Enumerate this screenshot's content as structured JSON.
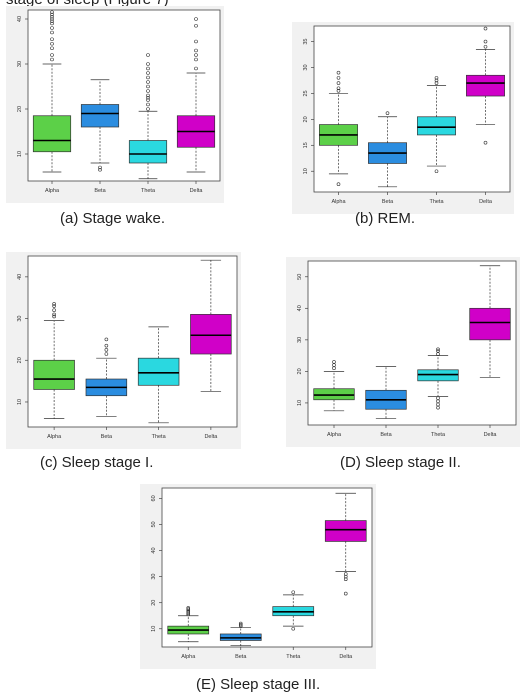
{
  "header_text": "stage of sleep (Figure 7)",
  "colors": {
    "Alpha": "#5cd048",
    "Beta": "#2b8de0",
    "Theta": "#2ad8e0",
    "Delta": "#d000c8"
  },
  "chart_data": [
    {
      "type": "boxplot",
      "caption": "(a) Stage wake.",
      "categories": [
        "Alpha",
        "Beta",
        "Theta",
        "Delta"
      ],
      "yticks": [
        10,
        20,
        30,
        40
      ],
      "ylim": [
        4,
        42
      ],
      "boxes": [
        {
          "name": "Alpha",
          "whisker_low": 6,
          "q1": 10.5,
          "median": 13,
          "q3": 18.5,
          "whisker_high": 30,
          "outliers": [
            31,
            32,
            33.5,
            34.5,
            35.5,
            37,
            38,
            39,
            39.5,
            40,
            40.5,
            41,
            41.5
          ]
        },
        {
          "name": "Beta",
          "whisker_low": 8,
          "q1": 16,
          "median": 19,
          "q3": 21,
          "whisker_high": 26.5,
          "outliers": [
            7,
            6.5
          ]
        },
        {
          "name": "Theta",
          "whisker_low": 4.5,
          "q1": 8,
          "median": 10,
          "q3": 13,
          "whisker_high": 19.5,
          "outliers": [
            20,
            21,
            22,
            22.5,
            23,
            24,
            25,
            26,
            27,
            28,
            29,
            30,
            32
          ]
        },
        {
          "name": "Delta",
          "whisker_low": 6,
          "q1": 11.5,
          "median": 15,
          "q3": 18.5,
          "whisker_high": 28,
          "outliers": [
            29,
            31,
            32,
            33,
            35,
            38.5,
            40
          ]
        }
      ]
    },
    {
      "type": "boxplot",
      "caption": "(b) REM.",
      "categories": [
        "Alpha",
        "Beta",
        "Theta",
        "Delta"
      ],
      "yticks": [
        10,
        15,
        20,
        25,
        30,
        35
      ],
      "ylim": [
        6,
        38
      ],
      "boxes": [
        {
          "name": "Alpha",
          "whisker_low": 9.5,
          "q1": 15,
          "median": 17,
          "q3": 19,
          "whisker_high": 25,
          "outliers": [
            7.5,
            25.5,
            26,
            27,
            28,
            29
          ]
        },
        {
          "name": "Beta",
          "whisker_low": 7,
          "q1": 11.5,
          "median": 13.5,
          "q3": 15.5,
          "whisker_high": 20.5,
          "outliers": [
            21.2
          ]
        },
        {
          "name": "Theta",
          "whisker_low": 11,
          "q1": 17,
          "median": 18.5,
          "q3": 20.5,
          "whisker_high": 26.5,
          "outliers": [
            10,
            27,
            27.5,
            28
          ]
        },
        {
          "name": "Delta",
          "whisker_low": 19,
          "q1": 24.5,
          "median": 27,
          "q3": 28.5,
          "whisker_high": 33.5,
          "outliers": [
            15.5,
            34,
            35,
            37.5
          ]
        }
      ]
    },
    {
      "type": "boxplot",
      "caption": "(c) Sleep stage I.",
      "categories": [
        "Alpha",
        "Beta",
        "Theta",
        "Delta"
      ],
      "yticks": [
        10,
        20,
        30,
        40
      ],
      "ylim": [
        4,
        45
      ],
      "boxes": [
        {
          "name": "Alpha",
          "whisker_low": 6,
          "q1": 13,
          "median": 15.5,
          "q3": 20,
          "whisker_high": 29.5,
          "outliers": [
            30.5,
            31,
            32,
            33,
            33.5
          ]
        },
        {
          "name": "Beta",
          "whisker_low": 6.5,
          "q1": 11.5,
          "median": 13.5,
          "q3": 15.5,
          "whisker_high": 20.5,
          "outliers": [
            21.5,
            22.5,
            23.5,
            25
          ]
        },
        {
          "name": "Theta",
          "whisker_low": 5,
          "q1": 14,
          "median": 17,
          "q3": 20.5,
          "whisker_high": 28,
          "outliers": []
        },
        {
          "name": "Delta",
          "whisker_low": 12.5,
          "q1": 21.5,
          "median": 26,
          "q3": 31,
          "whisker_high": 44,
          "outliers": []
        }
      ]
    },
    {
      "type": "boxplot",
      "caption": "(D) Sleep stage II.",
      "categories": [
        "Alpha",
        "Beta",
        "Theta",
        "Delta"
      ],
      "yticks": [
        10,
        20,
        30,
        40,
        50
      ],
      "ylim": [
        3,
        55
      ],
      "boxes": [
        {
          "name": "Alpha",
          "whisker_low": 7.5,
          "q1": 11,
          "median": 12.5,
          "q3": 14.5,
          "whisker_high": 20,
          "outliers": [
            21,
            22,
            23
          ]
        },
        {
          "name": "Beta",
          "whisker_low": 5,
          "q1": 8,
          "median": 11,
          "q3": 14,
          "whisker_high": 21.5,
          "outliers": []
        },
        {
          "name": "Theta",
          "whisker_low": 12,
          "q1": 17,
          "median": 19,
          "q3": 20.5,
          "whisker_high": 25,
          "outliers": [
            8.5,
            9.5,
            10.5,
            11.5,
            25.5,
            26.5,
            27
          ]
        },
        {
          "name": "Delta",
          "whisker_low": 18,
          "q1": 30,
          "median": 35.5,
          "q3": 40,
          "whisker_high": 53.5,
          "outliers": []
        }
      ]
    },
    {
      "type": "boxplot",
      "caption": "(E) Sleep stage III.",
      "categories": [
        "Alpha",
        "Beta",
        "Theta",
        "Delta"
      ],
      "yticks": [
        10,
        20,
        30,
        40,
        50,
        60
      ],
      "ylim": [
        3,
        64
      ],
      "boxes": [
        {
          "name": "Alpha",
          "whisker_low": 5,
          "q1": 8,
          "median": 9.5,
          "q3": 11,
          "whisker_high": 15,
          "outliers": [
            15.5,
            16,
            16.5,
            17,
            17.5,
            18
          ]
        },
        {
          "name": "Beta",
          "whisker_low": 3.5,
          "q1": 5.5,
          "median": 6.5,
          "q3": 8,
          "whisker_high": 10.5,
          "outliers": [
            11,
            11.5,
            12
          ]
        },
        {
          "name": "Theta",
          "whisker_low": 11,
          "q1": 15,
          "median": 16.5,
          "q3": 18.5,
          "whisker_high": 23,
          "outliers": [
            10,
            24
          ]
        },
        {
          "name": "Delta",
          "whisker_low": 32,
          "q1": 43.5,
          "median": 48,
          "q3": 51.5,
          "whisker_high": 62,
          "outliers": [
            23.5,
            29,
            30,
            31
          ]
        }
      ]
    }
  ]
}
